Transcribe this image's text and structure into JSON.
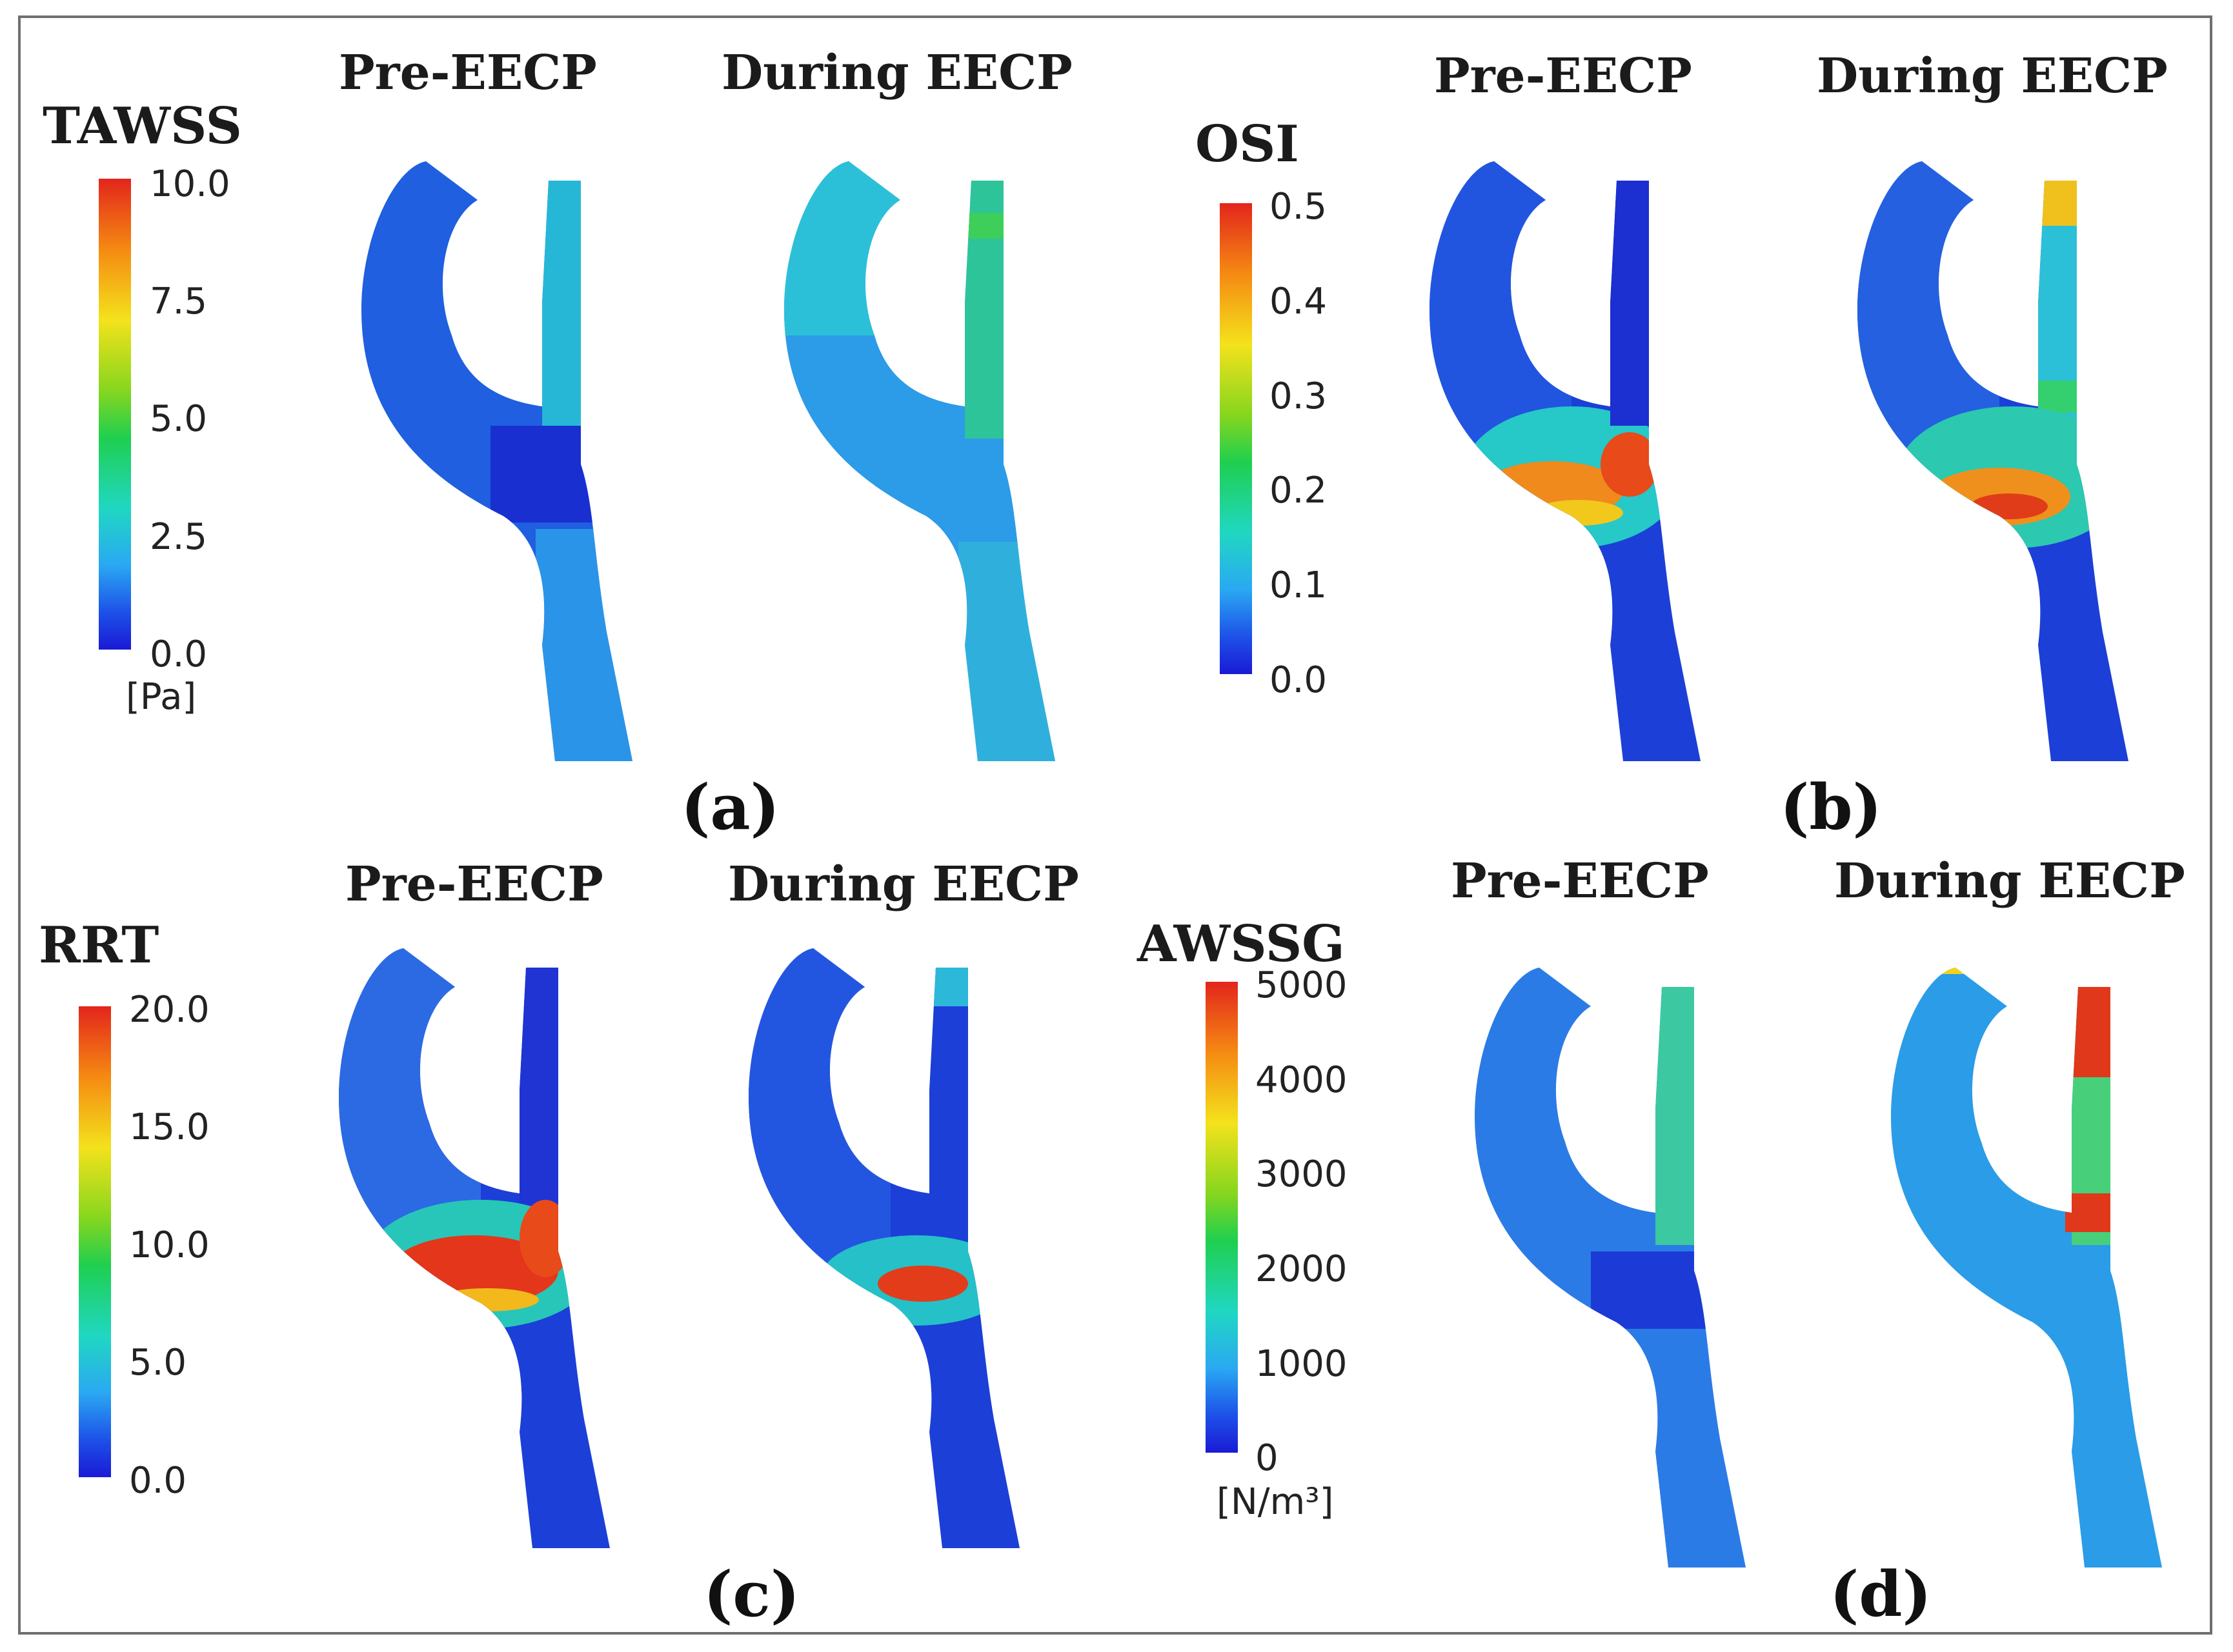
{
  "columns": {
    "pre": "Pre-EECP",
    "during": "During EECP"
  },
  "panels": [
    {
      "id": "a",
      "letter": "(a)",
      "metric": "TAWSS",
      "ticks": [
        "10.0",
        "7.5",
        "5.0",
        "2.5",
        "0.0"
      ],
      "unit": "[Pa]"
    },
    {
      "id": "b",
      "letter": "(b)",
      "metric": "OSI",
      "ticks": [
        "0.5",
        "0.4",
        "0.3",
        "0.2",
        "0.1",
        "0.0"
      ],
      "unit": ""
    },
    {
      "id": "c",
      "letter": "(c)",
      "metric": "RRT",
      "ticks": [
        "20.0",
        "15.0",
        "10.0",
        "5.0",
        "0.0"
      ],
      "unit": ""
    },
    {
      "id": "d",
      "letter": "(d)",
      "metric": "AWSSG",
      "ticks": [
        "5000",
        "4000",
        "3000",
        "2000",
        "1000",
        "0"
      ],
      "unit": "[N/m³]"
    }
  ],
  "colormap": [
    "#1a1ad6",
    "#2aa9f2",
    "#20d7c2",
    "#1fcf4f",
    "#f4e21c",
    "#f58a12",
    "#e3251c"
  ]
}
